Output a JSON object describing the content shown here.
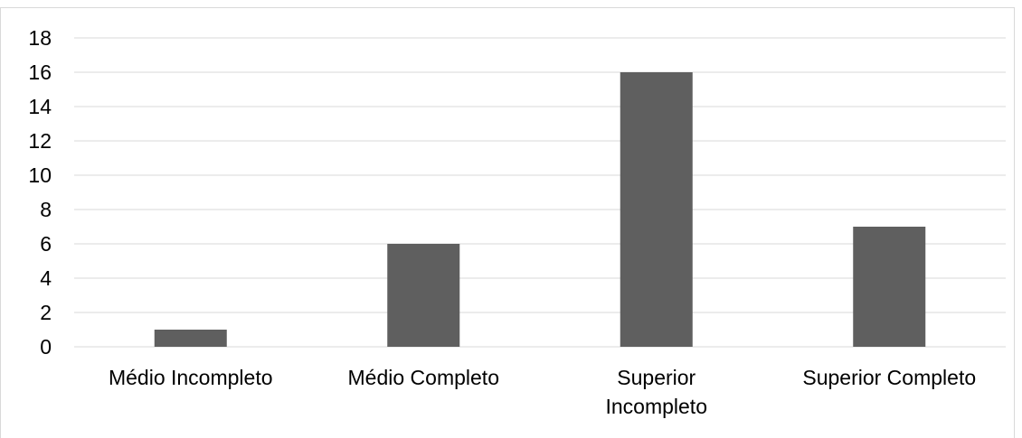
{
  "chart_data": {
    "type": "bar",
    "categories": [
      "Médio Incompleto",
      "Médio Completo",
      "Superior Incompleto",
      "Superior Completo"
    ],
    "category_lines": [
      [
        "Médio Incompleto"
      ],
      [
        "Médio Completo"
      ],
      [
        "Superior",
        "Incompleto"
      ],
      [
        "Superior Completo"
      ]
    ],
    "values": [
      1,
      6,
      16,
      7
    ],
    "ylim": [
      0,
      18
    ],
    "yticks": [
      "0",
      "2",
      "4",
      "6",
      "8",
      "10",
      "12",
      "14",
      "16",
      "18"
    ],
    "grid": true,
    "legend": "none",
    "colors": {
      "bar": "#5f5f5f",
      "grid": "#d9d9d9",
      "axis": "#d9d9d9"
    }
  }
}
